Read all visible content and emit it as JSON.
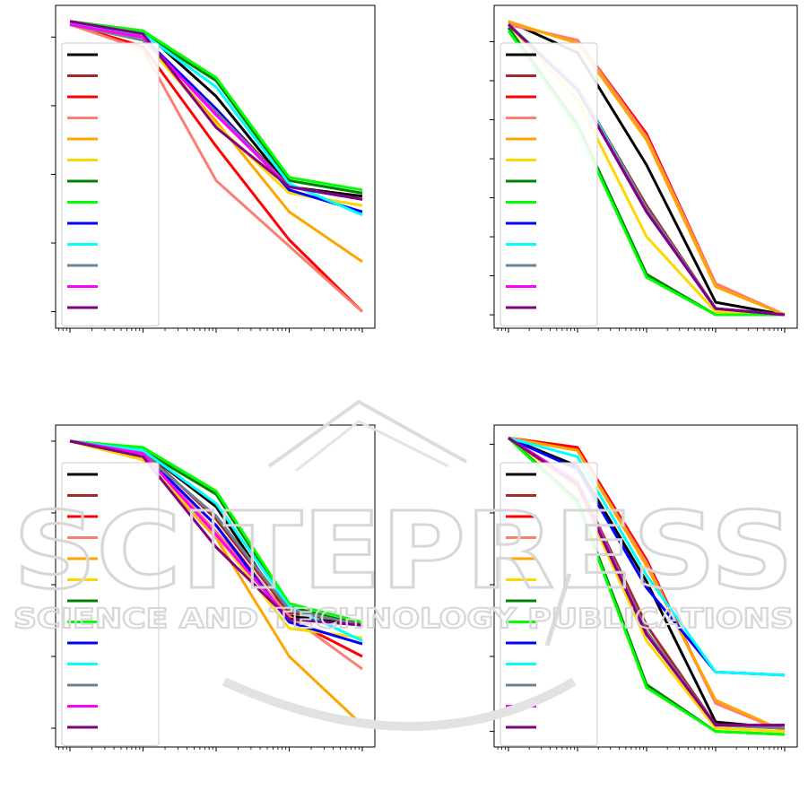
{
  "watermark": {
    "title": "SCITEPRESS",
    "subtitle": "SCIENCE AND TECHNOLOGY PUBLICATIONS"
  },
  "chart_data": [
    {
      "type": "line",
      "x_scale": "log",
      "x": [
        1,
        10,
        100,
        1000,
        10000
      ],
      "ylim": [
        0,
        1
      ],
      "grid": false,
      "legend": "top-left",
      "series": [
        {
          "color": "#000000",
          "values": [
            0.96,
            0.93,
            0.72,
            0.43,
            0.4
          ]
        },
        {
          "color": "#a52a2a",
          "values": [
            0.95,
            0.91,
            0.68,
            0.43,
            0.39
          ]
        },
        {
          "color": "#ff0000",
          "values": [
            0.95,
            0.88,
            0.56,
            0.26,
            0.03
          ]
        },
        {
          "color": "#fa8072",
          "values": [
            0.95,
            0.87,
            0.45,
            0.24,
            0.03
          ]
        },
        {
          "color": "#ffa500",
          "values": [
            0.95,
            0.9,
            0.64,
            0.35,
            0.19
          ]
        },
        {
          "color": "#ffd700",
          "values": [
            0.95,
            0.9,
            0.63,
            0.41,
            0.37
          ]
        },
        {
          "color": "#008000",
          "values": [
            0.95,
            0.92,
            0.77,
            0.45,
            0.41
          ]
        },
        {
          "color": "#00ff00",
          "values": [
            0.96,
            0.93,
            0.78,
            0.46,
            0.42
          ]
        },
        {
          "color": "#0000ff",
          "values": [
            0.95,
            0.91,
            0.68,
            0.42,
            0.35
          ]
        },
        {
          "color": "#00ffff",
          "values": [
            0.95,
            0.92,
            0.75,
            0.44,
            0.34
          ]
        },
        {
          "color": "#708090",
          "values": [
            0.95,
            0.9,
            0.67,
            0.43,
            0.39
          ]
        },
        {
          "color": "#ff00ff",
          "values": [
            0.95,
            0.91,
            0.66,
            0.43,
            0.39
          ]
        },
        {
          "color": "#800080",
          "values": [
            0.96,
            0.92,
            0.62,
            0.43,
            0.39
          ]
        }
      ]
    },
    {
      "type": "line",
      "x_scale": "log",
      "x": [
        1,
        10,
        100,
        1000,
        10000
      ],
      "ylim": [
        0,
        1
      ],
      "grid": false,
      "legend": "top-left",
      "series": [
        {
          "color": "#000000",
          "values": [
            0.96,
            0.86,
            0.5,
            0.06,
            0.02
          ]
        },
        {
          "color": "#a52a2a",
          "values": [
            0.95,
            0.75,
            0.37,
            0.04,
            0.02
          ]
        },
        {
          "color": "#ff0000",
          "values": [
            0.95,
            0.9,
            0.6,
            0.12,
            0.02
          ]
        },
        {
          "color": "#fa8072",
          "values": [
            0.95,
            0.9,
            0.59,
            0.12,
            0.02
          ]
        },
        {
          "color": "#ffa500",
          "values": [
            0.96,
            0.89,
            0.58,
            0.11,
            0.02
          ]
        },
        {
          "color": "#ffd700",
          "values": [
            0.95,
            0.71,
            0.27,
            0.03,
            0.02
          ]
        },
        {
          "color": "#008000",
          "values": [
            0.94,
            0.63,
            0.15,
            0.02,
            0.02
          ]
        },
        {
          "color": "#00ff00",
          "values": [
            0.93,
            0.62,
            0.14,
            0.02,
            0.02
          ]
        },
        {
          "color": "#0000ff",
          "values": [
            0.95,
            0.74,
            0.35,
            0.04,
            0.02
          ]
        },
        {
          "color": "#00ffff",
          "values": [
            0.95,
            0.75,
            0.36,
            0.04,
            0.02
          ]
        },
        {
          "color": "#708090",
          "values": [
            0.95,
            0.74,
            0.36,
            0.04,
            0.02
          ]
        },
        {
          "color": "#ff00ff",
          "values": [
            0.95,
            0.74,
            0.35,
            0.04,
            0.02
          ]
        },
        {
          "color": "#800080",
          "values": [
            0.95,
            0.74,
            0.35,
            0.04,
            0.02
          ]
        }
      ]
    },
    {
      "type": "line",
      "x_scale": "log",
      "x": [
        1,
        10,
        100,
        1000,
        10000
      ],
      "ylim": [
        0,
        1
      ],
      "grid": false,
      "legend": "top-left",
      "series": [
        {
          "color": "#000000",
          "values": [
            0.96,
            0.93,
            0.75,
            0.4,
            0.37
          ]
        },
        {
          "color": "#a52a2a",
          "values": [
            0.96,
            0.93,
            0.71,
            0.41,
            0.38
          ]
        },
        {
          "color": "#ff0000",
          "values": [
            0.96,
            0.92,
            0.69,
            0.39,
            0.27
          ]
        },
        {
          "color": "#fa8072",
          "values": [
            0.96,
            0.92,
            0.67,
            0.4,
            0.23
          ]
        },
        {
          "color": "#ffa500",
          "values": [
            0.96,
            0.9,
            0.65,
            0.27,
            0.05
          ]
        },
        {
          "color": "#ffd700",
          "values": [
            0.96,
            0.9,
            0.66,
            0.36,
            0.33
          ]
        },
        {
          "color": "#008000",
          "values": [
            0.96,
            0.93,
            0.79,
            0.43,
            0.37
          ]
        },
        {
          "color": "#00ff00",
          "values": [
            0.96,
            0.94,
            0.8,
            0.44,
            0.38
          ]
        },
        {
          "color": "#0000ff",
          "values": [
            0.96,
            0.92,
            0.69,
            0.38,
            0.31
          ]
        },
        {
          "color": "#00ffff",
          "values": [
            0.96,
            0.93,
            0.76,
            0.43,
            0.32
          ]
        },
        {
          "color": "#708090",
          "values": [
            0.96,
            0.92,
            0.72,
            0.42,
            0.37
          ]
        },
        {
          "color": "#ff00ff",
          "values": [
            0.96,
            0.92,
            0.66,
            0.39,
            0.37
          ]
        },
        {
          "color": "#800080",
          "values": [
            0.96,
            0.91,
            0.62,
            0.39,
            0.37
          ]
        }
      ]
    },
    {
      "type": "line",
      "x_scale": "log",
      "x": [
        1,
        10,
        100,
        1000,
        10000
      ],
      "ylim": [
        0,
        1
      ],
      "grid": false,
      "legend": "top-left",
      "series": [
        {
          "color": "#000000",
          "values": [
            0.97,
            0.88,
            0.51,
            0.06,
            0.04
          ]
        },
        {
          "color": "#a52a2a",
          "values": [
            0.97,
            0.83,
            0.37,
            0.05,
            0.04
          ]
        },
        {
          "color": "#ff0000",
          "values": [
            0.97,
            0.94,
            0.58,
            0.12,
            0.03
          ]
        },
        {
          "color": "#fa8072",
          "values": [
            0.97,
            0.93,
            0.57,
            0.12,
            0.03
          ]
        },
        {
          "color": "#ffa500",
          "values": [
            0.97,
            0.93,
            0.56,
            0.13,
            0.03
          ]
        },
        {
          "color": "#ffd700",
          "values": [
            0.97,
            0.81,
            0.32,
            0.04,
            0.03
          ]
        },
        {
          "color": "#008000",
          "values": [
            0.97,
            0.77,
            0.18,
            0.03,
            0.02
          ]
        },
        {
          "color": "#00ff00",
          "values": [
            0.97,
            0.76,
            0.17,
            0.03,
            0.02
          ]
        },
        {
          "color": "#0000ff",
          "values": [
            0.97,
            0.87,
            0.49,
            0.22,
            0.21
          ]
        },
        {
          "color": "#00ffff",
          "values": [
            0.97,
            0.91,
            0.53,
            0.22,
            0.21
          ]
        },
        {
          "color": "#708090",
          "values": [
            0.97,
            0.83,
            0.35,
            0.05,
            0.04
          ]
        },
        {
          "color": "#ff00ff",
          "values": [
            0.97,
            0.83,
            0.34,
            0.05,
            0.05
          ]
        },
        {
          "color": "#800080",
          "values": [
            0.97,
            0.82,
            0.34,
            0.05,
            0.05
          ]
        }
      ]
    }
  ]
}
